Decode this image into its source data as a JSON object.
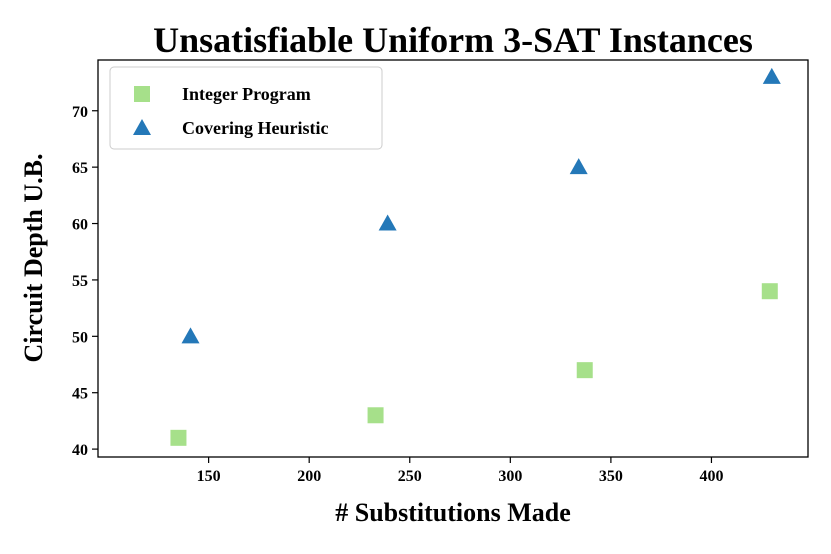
{
  "chart_data": {
    "type": "scatter",
    "title": "Unsatisfiable Uniform 3-SAT Instances",
    "xlabel": "# Substitutions Made",
    "ylabel": "Circuit Depth U.B.",
    "xlim": [
      95,
      448
    ],
    "ylim": [
      39.3,
      74.5
    ],
    "xticks": [
      150,
      200,
      250,
      300,
      350,
      400
    ],
    "yticks": [
      40,
      45,
      50,
      55,
      60,
      65,
      70
    ],
    "grid": false,
    "legend_position": "top-left",
    "series": [
      {
        "name": "Integer Program",
        "marker": "square",
        "color": "#a6e08a",
        "x": [
          135,
          233,
          337,
          429
        ],
        "y": [
          41,
          43,
          47,
          54
        ]
      },
      {
        "name": "Covering Heuristic",
        "marker": "triangle",
        "color": "#2478b8",
        "x": [
          141,
          239,
          334,
          430
        ],
        "y": [
          50,
          60,
          65,
          73
        ]
      }
    ]
  }
}
